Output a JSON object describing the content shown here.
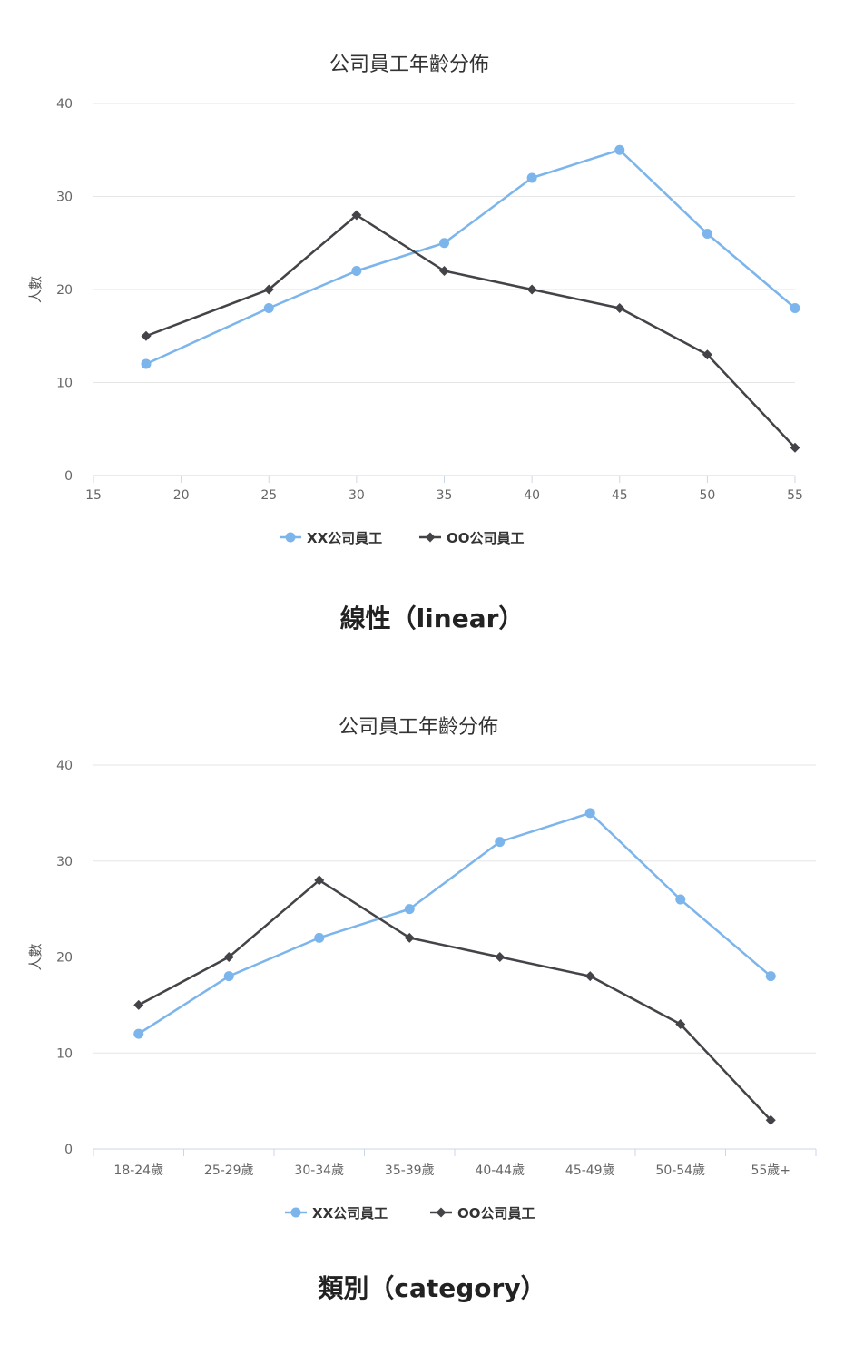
{
  "chart_data": [
    {
      "type": "line",
      "title": "公司員工年齡分佈",
      "xlabel": "",
      "ylabel": "人數",
      "x_axis_type": "linear",
      "xlim": [
        15,
        55
      ],
      "x_ticks": [
        15,
        20,
        25,
        30,
        35,
        40,
        45,
        50,
        55
      ],
      "ylim": [
        0,
        40
      ],
      "y_ticks": [
        0,
        10,
        20,
        30,
        40
      ],
      "grid": true,
      "legend_position": "bottom",
      "x": [
        18,
        25,
        30,
        35,
        40,
        45,
        50,
        55
      ],
      "series": [
        {
          "name": "XX公司員工",
          "values": [
            12,
            18,
            22,
            25,
            32,
            35,
            26,
            18
          ],
          "color": "#7cb5ec",
          "marker": "circle"
        },
        {
          "name": "OO公司員工",
          "values": [
            15,
            20,
            28,
            22,
            20,
            18,
            13,
            3
          ],
          "color": "#434348",
          "marker": "diamond"
        }
      ]
    },
    {
      "type": "line",
      "title": "公司員工年齡分佈",
      "xlabel": "",
      "ylabel": "人數",
      "x_axis_type": "category",
      "categories": [
        "18-24歲",
        "25-29歲",
        "30-34歲",
        "35-39歲",
        "40-44歲",
        "45-49歲",
        "50-54歲",
        "55歲+"
      ],
      "ylim": [
        0,
        40
      ],
      "y_ticks": [
        0,
        10,
        20,
        30,
        40
      ],
      "grid": true,
      "legend_position": "bottom",
      "series": [
        {
          "name": "XX公司員工",
          "values": [
            12,
            18,
            22,
            25,
            32,
            35,
            26,
            18
          ],
          "color": "#7cb5ec",
          "marker": "circle"
        },
        {
          "name": "OO公司員工",
          "values": [
            15,
            20,
            28,
            22,
            20,
            18,
            13,
            3
          ],
          "color": "#434348",
          "marker": "diamond"
        }
      ]
    }
  ],
  "captions": {
    "linear": "線性（linear）",
    "category": "類別（category）"
  }
}
